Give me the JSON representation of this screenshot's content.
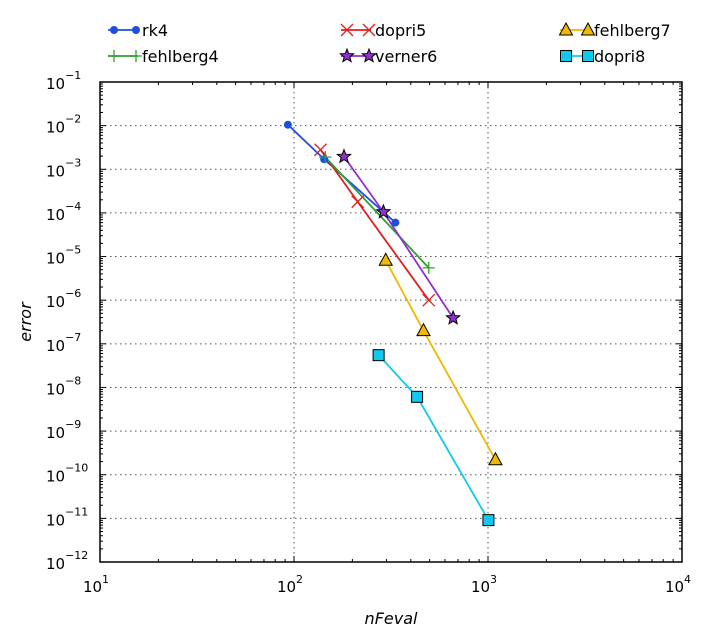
{
  "chart_data": {
    "type": "line",
    "xlabel": "nFeval",
    "ylabel": "error",
    "x_scale": "log",
    "y_scale": "log",
    "xlim": [
      10,
      10000
    ],
    "ylim": [
      1e-12,
      0.1
    ],
    "grid": true,
    "legend_position": "top",
    "x_ticks": [
      {
        "value": 10,
        "base": "10",
        "exp": "1"
      },
      {
        "value": 100,
        "base": "10",
        "exp": "2"
      },
      {
        "value": 1000,
        "base": "10",
        "exp": "3"
      },
      {
        "value": 10000,
        "base": "10",
        "exp": "4"
      }
    ],
    "y_ticks": [
      {
        "value": 1e-12,
        "base": "10",
        "exp": "−12"
      },
      {
        "value": 1e-11,
        "base": "10",
        "exp": "−11"
      },
      {
        "value": 1e-10,
        "base": "10",
        "exp": "−10"
      },
      {
        "value": 1e-09,
        "base": "10",
        "exp": "−9"
      },
      {
        "value": 1e-08,
        "base": "10",
        "exp": "−8"
      },
      {
        "value": 1e-07,
        "base": "10",
        "exp": "−7"
      },
      {
        "value": 1e-06,
        "base": "10",
        "exp": "−6"
      },
      {
        "value": 1e-05,
        "base": "10",
        "exp": "−5"
      },
      {
        "value": 0.0001,
        "base": "10",
        "exp": "−4"
      },
      {
        "value": 0.001,
        "base": "10",
        "exp": "−3"
      },
      {
        "value": 0.01,
        "base": "10",
        "exp": "−2"
      },
      {
        "value": 0.1,
        "base": "10",
        "exp": "−1"
      }
    ],
    "series": [
      {
        "name": "rk4",
        "color": "#1f4de0",
        "marker": "dot",
        "x": [
          93,
          143,
          333
        ],
        "y": [
          0.0105,
          0.0017,
          6e-05
        ]
      },
      {
        "name": "dopri5",
        "color": "#e02020",
        "marker": "x",
        "x": [
          137,
          213,
          495
        ],
        "y": [
          0.0028,
          0.00018,
          1e-06
        ]
      },
      {
        "name": "fehlberg7",
        "color": "#f0b800",
        "marker": "triangle",
        "x": [
          297,
          465,
          1092
        ],
        "y": [
          8.2e-06,
          2e-07,
          2.2e-10
        ]
      },
      {
        "name": "fehlberg4",
        "color": "#30a030",
        "marker": "plus",
        "x": [
          145,
          495
        ],
        "y": [
          0.0019,
          5.5e-06
        ]
      },
      {
        "name": "verner6",
        "color": "#9030d0",
        "marker": "star",
        "x": [
          181,
          289,
          661
        ],
        "y": [
          0.00195,
          0.000105,
          3.9e-07
        ]
      },
      {
        "name": "dopri8",
        "color": "#10c8f0",
        "marker": "square",
        "x": [
          273,
          431,
          1005
        ],
        "y": [
          5.5e-08,
          6.1e-09,
          9.1e-12
        ]
      }
    ]
  }
}
